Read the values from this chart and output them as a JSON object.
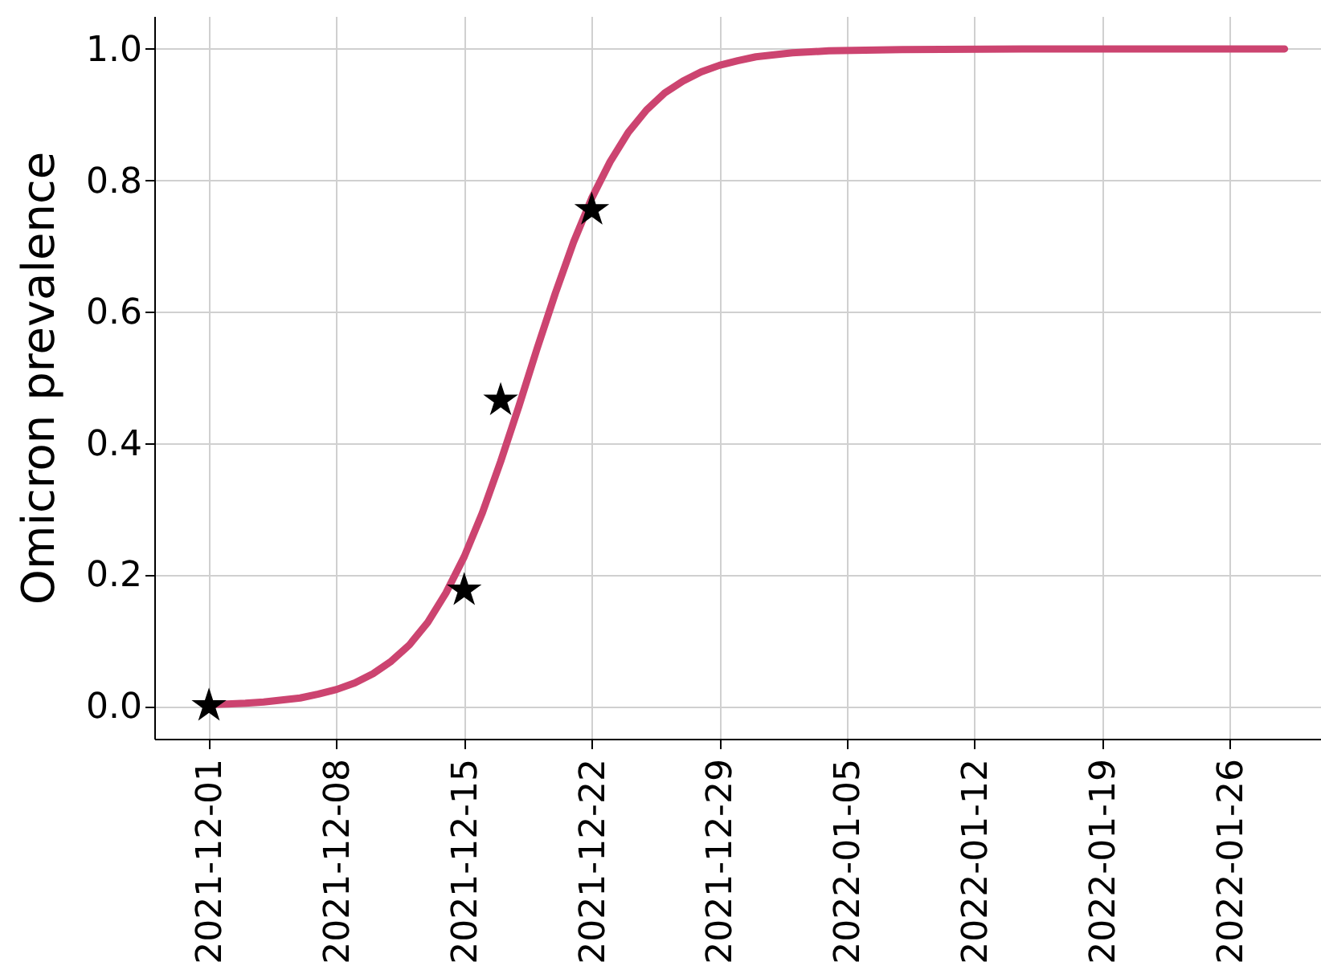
{
  "chart_data": {
    "type": "line",
    "ylabel": "Omicron prevalence",
    "xlim": [
      "2021-11-28",
      "2022-01-31"
    ],
    "ylim": [
      -0.05,
      1.05
    ],
    "xticks": [
      "2021-12-01",
      "2021-12-08",
      "2021-12-15",
      "2021-12-22",
      "2021-12-29",
      "2022-01-05",
      "2022-01-12",
      "2022-01-19",
      "2022-01-26"
    ],
    "yticks": [
      {
        "value": 0,
        "label": "0.0"
      },
      0.2,
      0.4,
      0.6,
      0.8,
      {
        "value": 1,
        "label": "1.0"
      }
    ],
    "grid": true,
    "series": [
      {
        "color": "#cc4470",
        "line_style": "solid",
        "marker": "none",
        "x": [
          "2021-12-01",
          "2021-12-02",
          "2021-12-03",
          "2021-12-04",
          "2021-12-05",
          "2021-12-06",
          "2021-12-07",
          "2021-12-08",
          "2021-12-09",
          "2021-12-10",
          "2021-12-11",
          "2021-12-12",
          "2021-12-13",
          "2021-12-14",
          "2021-12-15",
          "2021-12-16",
          "2021-12-17",
          "2021-12-18",
          "2021-12-19",
          "2021-12-20",
          "2021-12-21",
          "2021-12-22",
          "2021-12-23",
          "2021-12-24",
          "2021-12-25",
          "2021-12-26",
          "2021-12-27",
          "2021-12-28",
          "2021-12-29",
          "2021-12-30",
          "2021-12-31",
          "2022-01-02",
          "2022-01-04",
          "2022-01-08",
          "2022-01-15",
          "2022-01-29"
        ],
        "values": [
          0.002,
          0.003,
          0.004,
          0.006,
          0.009,
          0.012,
          0.018,
          0.025,
          0.035,
          0.049,
          0.068,
          0.093,
          0.127,
          0.172,
          0.227,
          0.294,
          0.372,
          0.456,
          0.544,
          0.628,
          0.706,
          0.773,
          0.828,
          0.873,
          0.907,
          0.933,
          0.951,
          0.965,
          0.975,
          0.982,
          0.988,
          0.994,
          0.997,
          0.999,
          1.0,
          1.0
        ]
      },
      {
        "type": "scatter",
        "color": "#000000",
        "marker": "star",
        "x": [
          "2021-12-01",
          "2021-12-15",
          "2021-12-17",
          "2021-12-22"
        ],
        "values": [
          0.0,
          0.176,
          0.465,
          0.755
        ]
      }
    ]
  }
}
